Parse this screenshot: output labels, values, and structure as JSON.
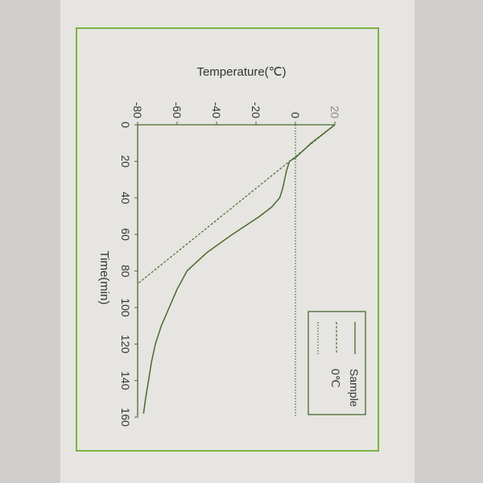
{
  "colors": {
    "frame": "#7cb342",
    "line": "#4a6a2e",
    "text": "#333333",
    "paper": "#e6e5e1"
  },
  "chart_data": {
    "type": "line",
    "orientation": "rotated 90° clockwise (time axis vertical, temperature axis horizontal)",
    "xlabel": "Time(min)",
    "ylabel": "Temperature(℃)",
    "xlim": [
      0,
      160
    ],
    "ylim": [
      -80,
      20
    ],
    "xticks": [
      "0",
      "20",
      "40",
      "60",
      "80",
      "100",
      "120",
      "140",
      "160"
    ],
    "yticks": [
      "-80",
      "-60",
      "-40",
      "-20",
      "0",
      "20"
    ],
    "legend_placement": "bottom-right",
    "series": [
      {
        "name": "Sample",
        "style": "solid",
        "x": [
          0,
          5,
          10,
          15,
          18,
          20,
          25,
          30,
          35,
          40,
          45,
          50,
          55,
          60,
          70,
          80,
          90,
          100,
          110,
          120,
          130,
          140,
          150,
          158
        ],
        "y": [
          20,
          14,
          8,
          3,
          0,
          -3,
          -4.5,
          -5.5,
          -6.5,
          -8,
          -12,
          -18,
          -25,
          -32,
          -45,
          -55,
          -60,
          -64,
          -68,
          -71,
          -73,
          -74.5,
          -76,
          -77
        ]
      },
      {
        "name": "0℃",
        "style": "dashed",
        "x": [
          0,
          87
        ],
        "y": [
          20,
          -80
        ]
      },
      {
        "style": "dotted",
        "x": [
          0,
          160
        ],
        "y": [
          0,
          0
        ]
      }
    ]
  }
}
